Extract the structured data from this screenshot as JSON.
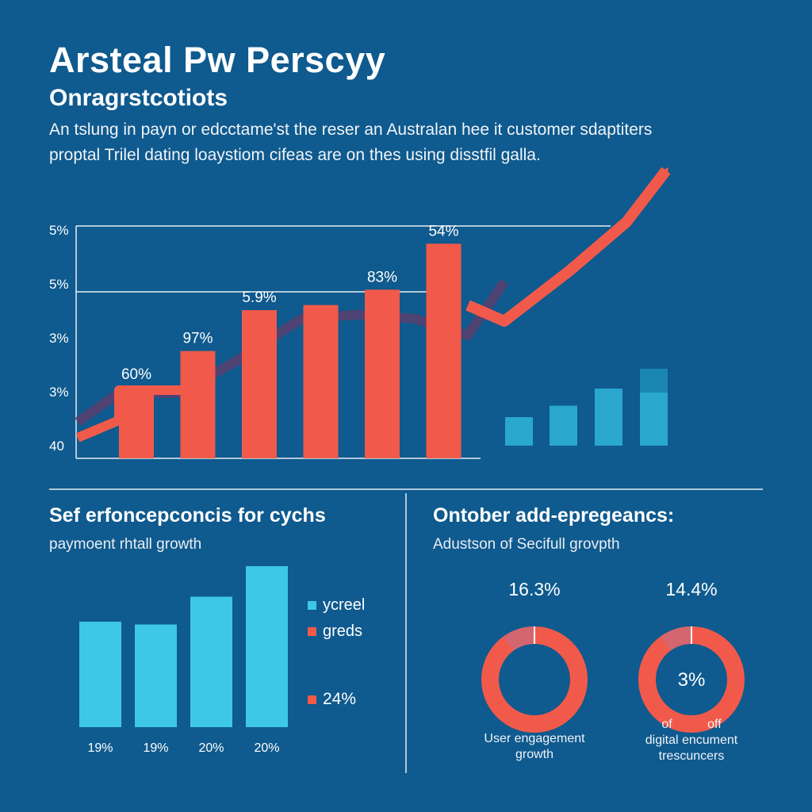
{
  "header": {
    "title": "Arsteal Pw Perscyy",
    "subtitle": "Onragrstcotiots",
    "intro_line1": "An tslung in payn or edcctame'st the reser an Australan hee it customer sdaptiters",
    "intro_line2": "proptal Trilel dating loaystiom cifeas are on thes using disstfil galla."
  },
  "colors": {
    "background": "#0f5a8e",
    "red": "#f15a4a",
    "cyan": "#3ec8e6",
    "teal": "#29a7cf",
    "dark_teal": "#1c86b2",
    "ring_pink": "#d4666f"
  },
  "chart_data": [
    {
      "type": "bar",
      "title": "",
      "y_tick_labels": [
        "5%",
        "5%",
        "3%",
        "3%",
        "40"
      ],
      "categories": [
        "",
        "",
        "",
        "",
        "",
        ""
      ],
      "values": [
        14,
        21,
        29,
        30,
        33,
        42
      ],
      "data_labels": [
        "60%",
        "97%",
        "5.9%",
        "",
        "83%",
        "54%"
      ],
      "ylim": [
        0,
        45
      ],
      "trend_line": [
        5,
        12,
        12,
        20,
        30,
        31,
        30,
        26,
        39
      ],
      "trend_label": "",
      "secondary_values": [
        5,
        7,
        10,
        13
      ],
      "grid": "horizontal",
      "legend": "none"
    },
    {
      "type": "bar",
      "title": "Sef erfoncepconcis for cychs",
      "subtitle": "paymoent rhtall growth",
      "categories": [
        "19%",
        "19%",
        "20%",
        "20%"
      ],
      "values": [
        19,
        18.5,
        23.5,
        29
      ],
      "ylim": [
        0,
        30
      ],
      "legend": "right",
      "legend_entries": [
        {
          "label": "ycreel",
          "color": "#3ec8e6"
        },
        {
          "label": "greds",
          "color": "#f15a4a"
        },
        {
          "label": "24%",
          "color": "#f15a4a"
        }
      ]
    },
    {
      "type": "pie",
      "title": "Ontober add-epregeancs:",
      "subtitle": "Adustson of Secifull grovpth",
      "donuts": [
        {
          "value_label": "16.3%",
          "fraction": 0.1,
          "center_label": "",
          "caption": [
            "User engagement",
            "growth"
          ]
        },
        {
          "value_label": "14.4%",
          "fraction": 0.1,
          "center_label": "3%",
          "caption": [
            "of          off",
            "digital encument",
            "trescuncers"
          ]
        }
      ]
    }
  ]
}
